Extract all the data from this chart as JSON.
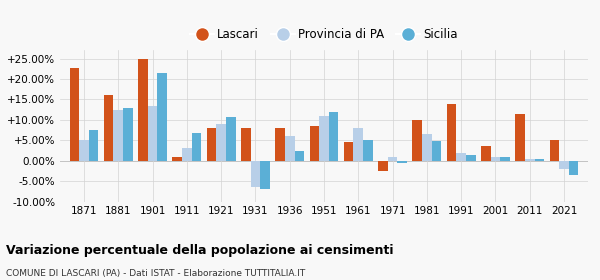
{
  "years": [
    1871,
    1881,
    1901,
    1911,
    1921,
    1931,
    1936,
    1951,
    1961,
    1971,
    1981,
    1991,
    2001,
    2011,
    2021
  ],
  "lascari": [
    22.8,
    16.0,
    24.8,
    1.0,
    8.0,
    8.0,
    8.0,
    8.5,
    4.5,
    -2.5,
    10.0,
    13.8,
    3.5,
    11.5,
    5.0
  ],
  "provincia_pa": [
    5.0,
    12.5,
    13.5,
    3.0,
    9.0,
    -6.5,
    6.0,
    11.0,
    8.0,
    1.0,
    6.5,
    2.0,
    1.0,
    0.5,
    -2.0
  ],
  "sicilia": [
    7.5,
    13.0,
    21.5,
    6.7,
    10.8,
    -7.0,
    2.5,
    12.0,
    5.0,
    -0.5,
    4.8,
    1.5,
    1.0,
    0.5,
    -3.5
  ],
  "color_lascari": "#d2521a",
  "color_provincia": "#b8cfe8",
  "color_sicilia": "#5bafd6",
  "title": "Variazione percentuale della popolazione ai censimenti",
  "subtitle": "COMUNE DI LASCARI (PA) - Dati ISTAT - Elaborazione TUTTITALIA.IT",
  "bg_color": "#f8f8f8",
  "ylim": [
    -10,
    27
  ],
  "yticks": [
    -10,
    -5,
    0,
    5,
    10,
    15,
    20,
    25
  ],
  "legend_labels": [
    "Lascari",
    "Provincia di PA",
    "Sicilia"
  ]
}
